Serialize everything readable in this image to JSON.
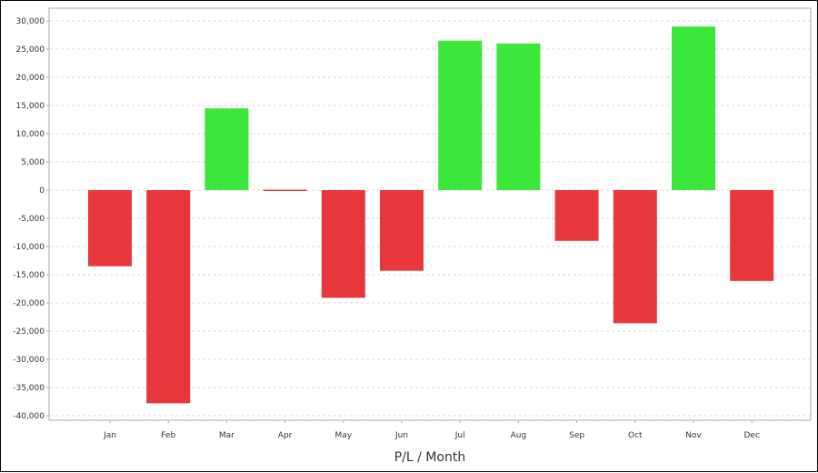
{
  "chart_data": {
    "type": "bar",
    "title": "",
    "xlabel": "P/L / Month",
    "ylabel": "",
    "categories": [
      "Jan",
      "Feb",
      "Mar",
      "Apr",
      "May",
      "Jun",
      "Jul",
      "Aug",
      "Sep",
      "Oct",
      "Nov",
      "Dec"
    ],
    "series": [
      {
        "values": [
          -13500,
          -37800,
          14500,
          -200,
          -19100,
          -14300,
          26500,
          26000,
          -9000,
          -23600,
          29000,
          -16100
        ]
      }
    ],
    "ylim": [
      -40000,
      30000
    ],
    "yticks": [
      30000,
      25000,
      20000,
      15000,
      10000,
      5000,
      0,
      -5000,
      -10000,
      -15000,
      -20000,
      -25000,
      -30000,
      -35000,
      -40000
    ],
    "ytick_labels": [
      "30,000",
      "25,000",
      "20,000",
      "15,000",
      "10,000",
      "5,000",
      "0",
      "-5,000",
      "-10,000",
      "-15,000",
      "-20,000",
      "-25,000",
      "-30,000",
      "-35,000",
      "-40,000"
    ],
    "grid": true,
    "legend": "none",
    "colors": {
      "positive": "#3DE63A",
      "negative": "#E8373C",
      "grid": "#D9D9D9",
      "axis": "#AAAAAA"
    }
  }
}
